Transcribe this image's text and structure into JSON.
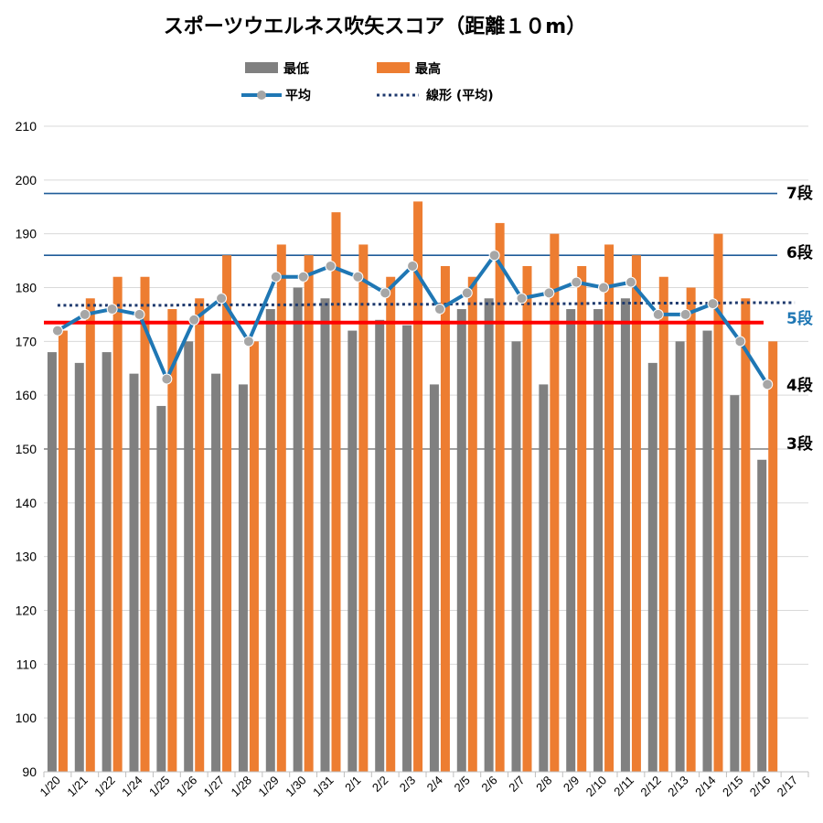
{
  "chart_data": {
    "type": "bar",
    "title": "スポーツウエルネス吹矢スコア（距離１０m）",
    "categories": [
      "1/20",
      "1/21",
      "1/22",
      "1/24",
      "1/25",
      "1/26",
      "1/27",
      "1/28",
      "1/29",
      "1/30",
      "1/31",
      "2/1",
      "2/2",
      "2/3",
      "2/4",
      "2/5",
      "2/6",
      "2/7",
      "2/8",
      "2/9",
      "2/10",
      "2/11",
      "2/12",
      "2/13",
      "2/14",
      "2/15",
      "2/16",
      "2/17"
    ],
    "series": [
      {
        "name": "最低",
        "type": "bar",
        "color": "#808080",
        "values": [
          168,
          166,
          168,
          164,
          158,
          170,
          164,
          162,
          176,
          180,
          178,
          172,
          174,
          173,
          162,
          176,
          178,
          170,
          162,
          176,
          176,
          178,
          166,
          170,
          172,
          160,
          148,
          null
        ]
      },
      {
        "name": "最高",
        "type": "bar",
        "color": "#ED7D31",
        "values": [
          172,
          178,
          182,
          182,
          176,
          178,
          186,
          170,
          188,
          186,
          194,
          188,
          182,
          196,
          184,
          182,
          192,
          184,
          190,
          184,
          188,
          186,
          182,
          180,
          190,
          178,
          170,
          null
        ]
      },
      {
        "name": "平均",
        "type": "line",
        "color": "#1F77B4",
        "marker_color": "#A6A6A6",
        "values": [
          172,
          175,
          176,
          175,
          163,
          174,
          178,
          170,
          182,
          182,
          184,
          182,
          179,
          184,
          176,
          179,
          186,
          178,
          179,
          181,
          180,
          181,
          175,
          175,
          177,
          170,
          162,
          null
        ]
      },
      {
        "name": "線形 (平均)",
        "type": "trendline",
        "style": "dotted",
        "color": "#1F3A6E",
        "values": [
          176.7,
          176.7,
          176.7,
          176.7,
          176.7,
          176.8,
          176.8,
          176.8,
          176.8,
          176.8,
          176.9,
          176.9,
          176.9,
          176.9,
          176.9,
          177.0,
          177.0,
          177.0,
          177.0,
          177.0,
          177.1,
          177.1,
          177.1,
          177.1,
          177.1,
          177.2,
          177.2,
          177.2
        ]
      }
    ],
    "ylim": [
      90,
      210
    ],
    "yticks": [
      90,
      100,
      110,
      120,
      130,
      140,
      150,
      160,
      170,
      180,
      190,
      200,
      210
    ],
    "xlabel": "",
    "ylabel": "",
    "grid": "horizontal",
    "legend_position": "top",
    "reference_lines": [
      {
        "label": "7段",
        "value": 197.5,
        "color": "#1F5C99",
        "label_color": "#000000"
      },
      {
        "label": "6段",
        "value": 186,
        "color": "#1F5C99",
        "label_color": "#000000"
      },
      {
        "label": "5段",
        "value": 173.5,
        "color": "#FF0000",
        "label_color": "#1F77B4"
      },
      {
        "label": "4段",
        "value": null,
        "color": null,
        "label_color": "#000000"
      },
      {
        "label": "3段",
        "value": 150,
        "color": "#808080",
        "label_color": "#000000"
      }
    ]
  }
}
